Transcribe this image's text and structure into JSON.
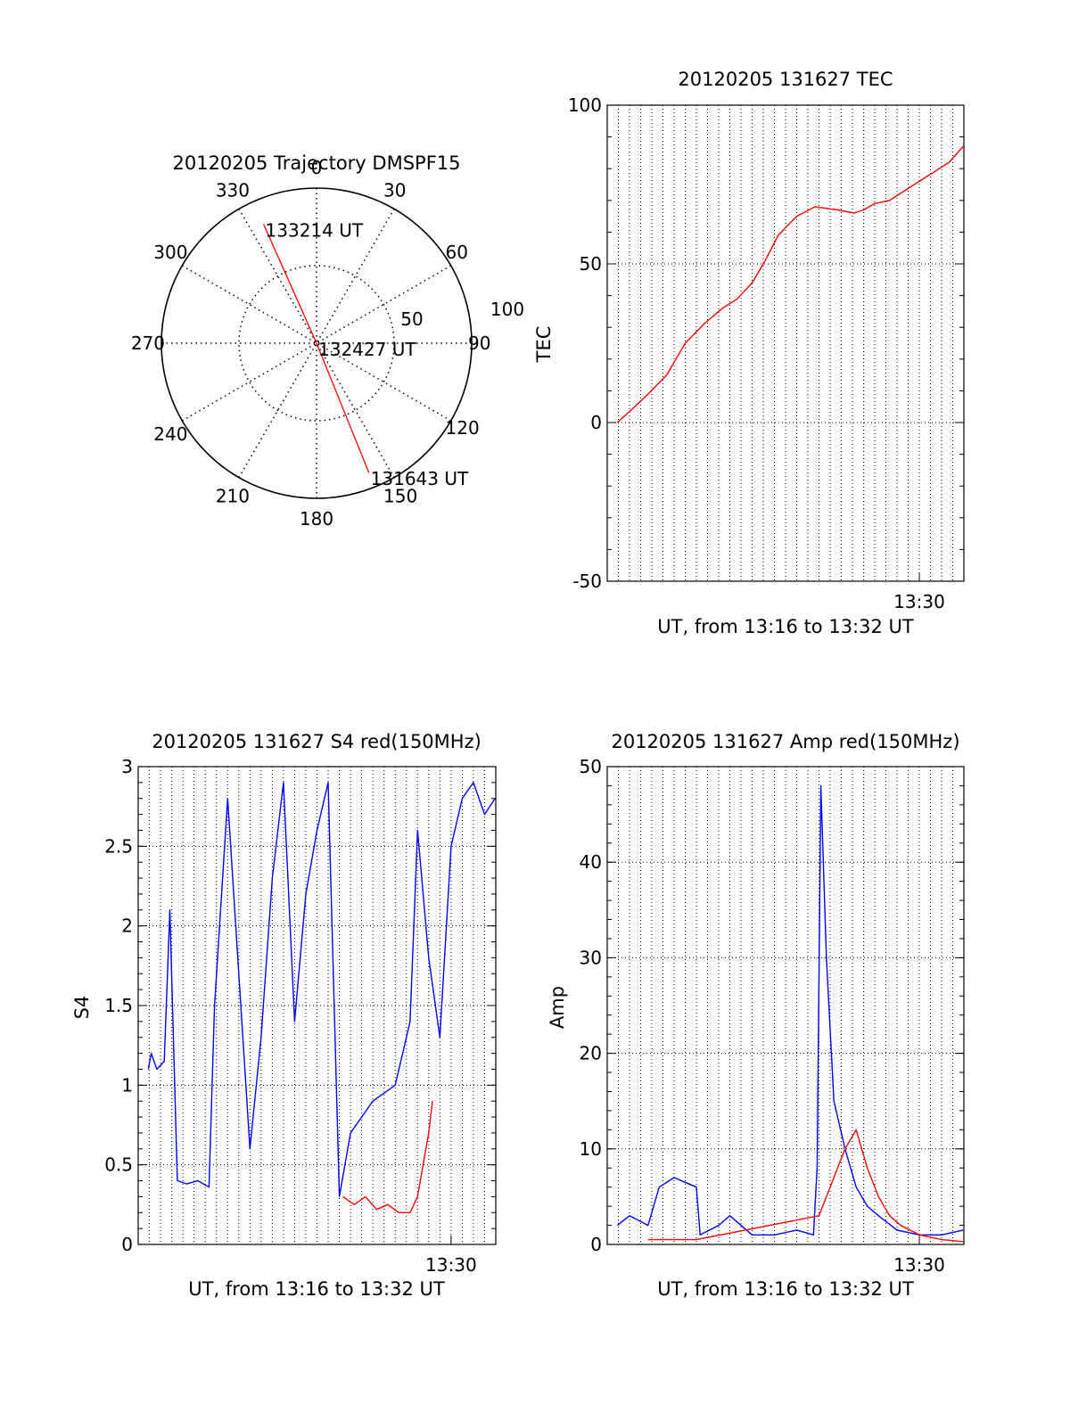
{
  "colors": {
    "primary": "#ff0000",
    "secondary": "#0000ff",
    "axis": "#000000",
    "grid": "#000000",
    "background": "#ffffff"
  },
  "chart_data": [
    {
      "type": "polar",
      "title": "20120205 Trajectory DMSPF15",
      "angle_labels": [
        "0",
        "30",
        "60",
        "90",
        "120",
        "150",
        "180",
        "210",
        "240",
        "270",
        "300",
        "330"
      ],
      "radius_labels": [
        "50",
        "100"
      ],
      "rlim": [
        0,
        100
      ],
      "grid": true,
      "series": [
        {
          "color": "#ff0000",
          "points": [
            {
              "azimuth": 336,
              "r": 84
            },
            {
              "azimuth": 180,
              "r": 0
            },
            {
              "azimuth": 158,
              "r": 90
            }
          ]
        }
      ],
      "annotations": [
        {
          "text": "133214 UT",
          "azimuth": 336,
          "r": 84
        },
        {
          "text": "132427 UT",
          "azimuth": 180,
          "r": 0
        },
        {
          "text": "131643 UT",
          "azimuth": 158,
          "r": 90
        }
      ]
    },
    {
      "type": "line",
      "title": "20120205 131627 TEC",
      "xlabel": "UT, from 13:16 to 13:32 UT",
      "ylabel": "TEC",
      "xlim": [
        "13:16",
        "13:32"
      ],
      "ylim": [
        -50,
        100
      ],
      "yticks": [
        "100",
        "50",
        "0",
        "-50"
      ],
      "xticks": [
        "13:30"
      ],
      "grid": true,
      "series": [
        {
          "color": "#ff0000",
          "x": [
            "13:16:27",
            "13:17:05",
            "13:17:50",
            "13:18:40",
            "13:19:30",
            "13:20:20",
            "13:21:10",
            "13:21:50",
            "13:22:30",
            "13:23:05",
            "13:23:40",
            "13:24:30",
            "13:25:20",
            "13:26:20",
            "13:27:05",
            "13:27:30",
            "13:28:00",
            "13:28:40",
            "13:29:20",
            "13:30:00",
            "13:30:40",
            "13:31:20",
            "13:31:58"
          ],
          "y": [
            0,
            4,
            9,
            15,
            25,
            31,
            36,
            39,
            44,
            51,
            59,
            65,
            68,
            67,
            66,
            67,
            69,
            70,
            73,
            76,
            79,
            82,
            87
          ]
        }
      ]
    },
    {
      "type": "line",
      "title": "20120205 131627 S4 red(150MHz)",
      "xlabel": "UT, from 13:16 to 13:32 UT",
      "ylabel": "S4",
      "xlim": [
        "13:16",
        "13:32"
      ],
      "ylim": [
        0,
        3
      ],
      "yticks": [
        "3",
        "2.5",
        "2",
        "1.5",
        "1",
        "0.5",
        "0"
      ],
      "xticks": [
        "13:30"
      ],
      "grid": true,
      "series": [
        {
          "color": "#0000ff",
          "x": [
            "13:16:27",
            "13:16:35",
            "13:16:50",
            "13:17:10",
            "13:17:25",
            "13:17:45",
            "13:18:10",
            "13:18:40",
            "13:19:10",
            "13:19:25",
            "13:20:00",
            "13:20:30",
            "13:21:00",
            "13:21:30",
            "13:22:00",
            "13:22:30",
            "13:23:00",
            "13:23:30",
            "13:24:00",
            "13:24:30",
            "13:25:00",
            "13:25:30",
            "13:26:00",
            "13:26:30",
            "13:27:00",
            "13:27:30",
            "13:27:50",
            "13:28:10",
            "13:28:30",
            "13:29:00",
            "13:29:30",
            "13:30:00",
            "13:30:30",
            "13:31:00",
            "13:31:30",
            "13:31:58"
          ],
          "y": [
            1.1,
            1.2,
            1.1,
            1.15,
            2.1,
            0.4,
            0.38,
            0.4,
            0.36,
            1.5,
            2.8,
            1.7,
            0.6,
            1.3,
            2.3,
            2.9,
            1.4,
            2.2,
            2.6,
            2.9,
            0.3,
            0.7,
            0.8,
            0.9,
            0.95,
            1.0,
            1.2,
            1.4,
            2.6,
            1.8,
            1.3,
            2.5,
            2.8,
            2.9,
            2.7,
            2.8
          ]
        },
        {
          "color": "#ff0000",
          "x": [
            "13:25:10",
            "13:25:40",
            "13:26:10",
            "13:26:40",
            "13:27:10",
            "13:27:40",
            "13:28:10",
            "13:28:30",
            "13:28:45",
            "13:29:00",
            "13:29:10"
          ],
          "y": [
            0.3,
            0.25,
            0.3,
            0.22,
            0.25,
            0.2,
            0.2,
            0.3,
            0.5,
            0.7,
            0.9
          ]
        }
      ]
    },
    {
      "type": "line",
      "title": "20120205 131627 Amp red(150MHz)",
      "xlabel": "UT, from 13:16 to 13:32 UT",
      "ylabel": "Amp",
      "xlim": [
        "13:16",
        "13:32"
      ],
      "ylim": [
        0,
        50
      ],
      "yticks": [
        "50",
        "40",
        "30",
        "20",
        "10",
        "0"
      ],
      "xticks": [
        "13:30"
      ],
      "grid": true,
      "series": [
        {
          "color": "#0000ff",
          "x": [
            "13:16:27",
            "13:17:00",
            "13:17:50",
            "13:18:20",
            "13:19:00",
            "13:20:00",
            "13:20:10",
            "13:21:00",
            "13:21:30",
            "13:22:30",
            "13:23:30",
            "13:24:30",
            "13:25:15",
            "13:25:25",
            "13:25:35",
            "13:25:50",
            "13:26:10",
            "13:26:40",
            "13:27:10",
            "13:27:40",
            "13:28:10",
            "13:29:00",
            "13:30:00",
            "13:31:00",
            "13:31:58"
          ],
          "y": [
            2,
            3,
            2,
            6,
            7,
            6,
            1,
            2,
            3,
            1,
            1,
            1.5,
            1,
            8,
            48,
            30,
            15,
            10,
            6,
            4,
            3,
            1.5,
            1,
            1,
            1.5
          ]
        },
        {
          "color": "#ff0000",
          "x": [
            "13:17:50",
            "13:20:00",
            "13:25:30",
            "13:26:00",
            "13:26:40",
            "13:27:10",
            "13:27:40",
            "13:28:10",
            "13:28:40",
            "13:29:10",
            "13:30:00",
            "13:31:00",
            "13:31:58"
          ],
          "y": [
            0.5,
            0.5,
            3,
            6,
            10,
            12,
            8,
            5,
            3,
            2,
            1,
            0.5,
            0.3
          ]
        }
      ]
    }
  ]
}
